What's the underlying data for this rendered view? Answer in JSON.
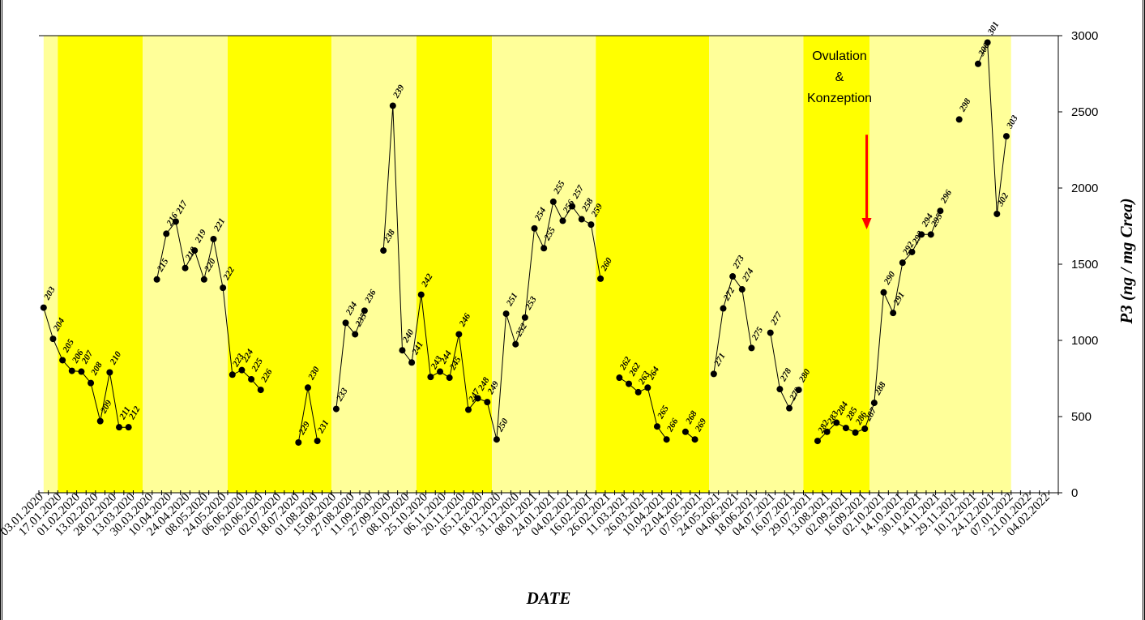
{
  "chart_data": {
    "type": "line",
    "xlabel": "DATE",
    "ylabel": "P3 (ng / mg Crea)",
    "ylim": [
      0,
      3000
    ],
    "yticks": [
      0,
      500,
      1000,
      1500,
      2000,
      2500,
      3000
    ],
    "y_axis_side": "right",
    "grid": false,
    "xticks": [
      "03.01.2020",
      "17.01.2020",
      "01.02.2020",
      "13.02.2020",
      "28.02.2020",
      "13.03.2020",
      "30.03.2020",
      "10.04.2020",
      "24.04.2020",
      "08.05.2020",
      "24.05.2020",
      "06.06.2020",
      "20.06.2020",
      "02.07.2020",
      "18.07.2020",
      "01.08.2020",
      "15.08.2020",
      "27.08.2020",
      "11.09.2020",
      "27.09.2020",
      "08.10.2020",
      "25.10.2020",
      "06.11.2020",
      "20.11.2020",
      "05.12.2020",
      "18.12.2020",
      "31.12.2020",
      "08.01.2021",
      "24.01.2021",
      "04.02.2021",
      "16.02.2021",
      "26.02.2021",
      "11.03.2021",
      "26.03.2021",
      "10.04.2021",
      "22.04.2021",
      "07.05.2021",
      "24.05.2021",
      "04.06.2021",
      "18.06.2021",
      "04.07.2021",
      "16.07.2021",
      "29.07.2021",
      "13.08.2021",
      "02.09.2021",
      "16.09.2021",
      "02.10.2021",
      "14.10.2021",
      "30.10.2021",
      "14.11.2021",
      "29.11.2021",
      "10.12.2021",
      "24.12.2021",
      "07.01.2022",
      "21.01.2022",
      "04.02.2022"
    ],
    "bands": [
      {
        "from": 0,
        "to": 1.5,
        "color": "#FFFF99"
      },
      {
        "from": 1.5,
        "to": 10.5,
        "color": "#FFFF00"
      },
      {
        "from": 10.5,
        "to": 19.5,
        "color": "#FFFF99"
      },
      {
        "from": 19.5,
        "to": 30.5,
        "color": "#FFFF00"
      },
      {
        "from": 30.5,
        "to": 39.5,
        "color": "#FFFF99"
      },
      {
        "from": 39.5,
        "to": 47.5,
        "color": "#FFFF00"
      },
      {
        "from": 47.5,
        "to": 58.5,
        "color": "#FFFF99"
      },
      {
        "from": 58.5,
        "to": 70.5,
        "color": "#FFFF00"
      },
      {
        "from": 70.5,
        "to": 80.5,
        "color": "#FFFF99"
      },
      {
        "from": 80.5,
        "to": 87.5,
        "color": "#FFFF00"
      },
      {
        "from": 87.5,
        "to": 102.5,
        "color": "#FFFF99"
      }
    ],
    "annotation": {
      "lines": [
        "Ovulation",
        "&",
        "Konzeption"
      ],
      "arrow_x": 87.2,
      "arrow_from": 2350,
      "arrow_to": 1750,
      "arrow_color": "#FF0000"
    },
    "series": [
      {
        "points": [
          {
            "x": 0,
            "y": 1215,
            "label": "203"
          },
          {
            "x": 1,
            "y": 1010,
            "label": "204"
          },
          {
            "x": 2,
            "y": 870,
            "label": "205"
          },
          {
            "x": 3,
            "y": 800,
            "label": "206"
          },
          {
            "x": 4,
            "y": 795,
            "label": "207"
          },
          {
            "x": 5,
            "y": 720,
            "label": "208"
          },
          {
            "x": 6,
            "y": 470,
            "label": "209"
          },
          {
            "x": 7,
            "y": 790,
            "label": "210"
          },
          {
            "x": 8,
            "y": 430,
            "label": "211"
          },
          {
            "x": 9,
            "y": 430,
            "label": "212"
          }
        ]
      },
      {
        "points": [
          {
            "x": 12,
            "y": 1400,
            "label": "215"
          },
          {
            "x": 13,
            "y": 1700,
            "label": "216"
          },
          {
            "x": 14,
            "y": 1780,
            "label": "217"
          },
          {
            "x": 15,
            "y": 1475,
            "label": "218"
          },
          {
            "x": 16,
            "y": 1590,
            "label": "219"
          },
          {
            "x": 17,
            "y": 1400,
            "label": "220"
          },
          {
            "x": 18,
            "y": 1665,
            "label": "221"
          },
          {
            "x": 19,
            "y": 1345,
            "label": "222"
          },
          {
            "x": 20,
            "y": 775,
            "label": "223"
          },
          {
            "x": 21,
            "y": 805,
            "label": "224"
          },
          {
            "x": 22,
            "y": 745,
            "label": "225"
          },
          {
            "x": 23,
            "y": 675,
            "label": "226"
          }
        ]
      },
      {
        "points": [
          {
            "x": 27,
            "y": 330,
            "label": "229"
          },
          {
            "x": 28,
            "y": 690,
            "label": "230"
          },
          {
            "x": 29,
            "y": 340,
            "label": "231"
          }
        ]
      },
      {
        "points": [
          {
            "x": 31,
            "y": 550,
            "label": "233"
          },
          {
            "x": 32,
            "y": 1115,
            "label": "234"
          },
          {
            "x": 33,
            "y": 1040,
            "label": "235"
          },
          {
            "x": 34,
            "y": 1195,
            "label": "236"
          }
        ]
      },
      {
        "points": [
          {
            "x": 36,
            "y": 1590,
            "label": "238"
          },
          {
            "x": 37,
            "y": 2540,
            "label": "239"
          },
          {
            "x": 38,
            "y": 935,
            "label": "240"
          },
          {
            "x": 39,
            "y": 855,
            "label": "241"
          },
          {
            "x": 40,
            "y": 1300,
            "label": "242"
          },
          {
            "x": 41,
            "y": 760,
            "label": "243"
          },
          {
            "x": 42,
            "y": 795,
            "label": "244"
          },
          {
            "x": 43,
            "y": 755,
            "label": "245"
          },
          {
            "x": 44,
            "y": 1040,
            "label": "246"
          },
          {
            "x": 45,
            "y": 545,
            "label": "247"
          },
          {
            "x": 46,
            "y": 620,
            "label": "248"
          },
          {
            "x": 47,
            "y": 595,
            "label": "249"
          },
          {
            "x": 48,
            "y": 350,
            "label": "250"
          },
          {
            "x": 49,
            "y": 1175,
            "label": "251"
          },
          {
            "x": 50,
            "y": 975,
            "label": "252"
          },
          {
            "x": 51,
            "y": 1150,
            "label": "253"
          },
          {
            "x": 52,
            "y": 1735,
            "label": "254"
          },
          {
            "x": 53,
            "y": 1605,
            "label": "255"
          },
          {
            "x": 54,
            "y": 1910,
            "label": "255"
          },
          {
            "x": 55,
            "y": 1785,
            "label": "256"
          },
          {
            "x": 56,
            "y": 1880,
            "label": "257"
          },
          {
            "x": 57,
            "y": 1795,
            "label": "258"
          },
          {
            "x": 58,
            "y": 1760,
            "label": "259"
          },
          {
            "x": 59,
            "y": 1405,
            "label": "260"
          }
        ]
      },
      {
        "points": [
          {
            "x": 61,
            "y": 755,
            "label": "262"
          },
          {
            "x": 62,
            "y": 715,
            "label": "262"
          },
          {
            "x": 63,
            "y": 660,
            "label": "263"
          },
          {
            "x": 64,
            "y": 690,
            "label": "264"
          },
          {
            "x": 65,
            "y": 435,
            "label": "265"
          },
          {
            "x": 66,
            "y": 350,
            "label": "266"
          }
        ]
      },
      {
        "points": [
          {
            "x": 68,
            "y": 400,
            "label": "268"
          },
          {
            "x": 69,
            "y": 350,
            "label": "269"
          }
        ]
      },
      {
        "points": [
          {
            "x": 71,
            "y": 780,
            "label": "271"
          },
          {
            "x": 72,
            "y": 1210,
            "label": "272"
          },
          {
            "x": 73,
            "y": 1420,
            "label": "273"
          },
          {
            "x": 74,
            "y": 1335,
            "label": "274"
          },
          {
            "x": 75,
            "y": 950,
            "label": "275"
          }
        ]
      },
      {
        "points": [
          {
            "x": 77,
            "y": 1050,
            "label": "277"
          },
          {
            "x": 78,
            "y": 680,
            "label": "278"
          },
          {
            "x": 79,
            "y": 555,
            "label": "279"
          },
          {
            "x": 80,
            "y": 675,
            "label": "280"
          }
        ]
      },
      {
        "points": [
          {
            "x": 82,
            "y": 340,
            "label": "282"
          },
          {
            "x": 83,
            "y": 400,
            "label": "283"
          },
          {
            "x": 84,
            "y": 460,
            "label": "284"
          },
          {
            "x": 85,
            "y": 425,
            "label": "285"
          },
          {
            "x": 86,
            "y": 395,
            "label": "286"
          },
          {
            "x": 87,
            "y": 420,
            "label": "287"
          },
          {
            "x": 88,
            "y": 590,
            "label": "288"
          },
          {
            "x": 89,
            "y": 1315,
            "label": "290"
          },
          {
            "x": 90,
            "y": 1180,
            "label": "291"
          },
          {
            "x": 91,
            "y": 1510,
            "label": "292"
          },
          {
            "x": 92,
            "y": 1580,
            "label": "293"
          },
          {
            "x": 93,
            "y": 1695,
            "label": "294"
          },
          {
            "x": 94,
            "y": 1695,
            "label": "295"
          },
          {
            "x": 95,
            "y": 1850,
            "label": "296"
          }
        ]
      },
      {
        "points": [
          {
            "x": 97,
            "y": 2450,
            "label": "298"
          }
        ]
      },
      {
        "points": [
          {
            "x": 99,
            "y": 2815,
            "label": "300"
          },
          {
            "x": 100,
            "y": 2955,
            "label": "301"
          },
          {
            "x": 101,
            "y": 1830,
            "label": "302"
          },
          {
            "x": 102,
            "y": 2340,
            "label": "303"
          }
        ]
      }
    ]
  }
}
